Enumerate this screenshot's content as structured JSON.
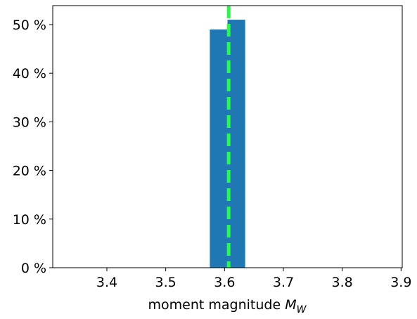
{
  "chart_data": {
    "type": "histogram",
    "bins": [
      3.575,
      3.605,
      3.635
    ],
    "values": [
      49,
      51
    ],
    "color": "#1f77b4",
    "xlim": [
      3.308,
      3.902
    ],
    "xticks": [
      3.4,
      3.5,
      3.6,
      3.7,
      3.8,
      3.9
    ],
    "ylim": [
      0,
      53.9
    ],
    "yticks": [
      {
        "value": 0,
        "label": "0 %"
      },
      {
        "value": 10,
        "label": "10 %"
      },
      {
        "value": 20,
        "label": "20 %"
      },
      {
        "value": 30,
        "label": "30 %"
      },
      {
        "value": 40,
        "label": "40 %"
      },
      {
        "value": 50,
        "label": "50 %"
      }
    ],
    "xlabel": {
      "text": "moment magnitude",
      "symbol": "M",
      "subscript": "W"
    },
    "vline": {
      "x": 3.607,
      "color": "#22ff44"
    }
  }
}
